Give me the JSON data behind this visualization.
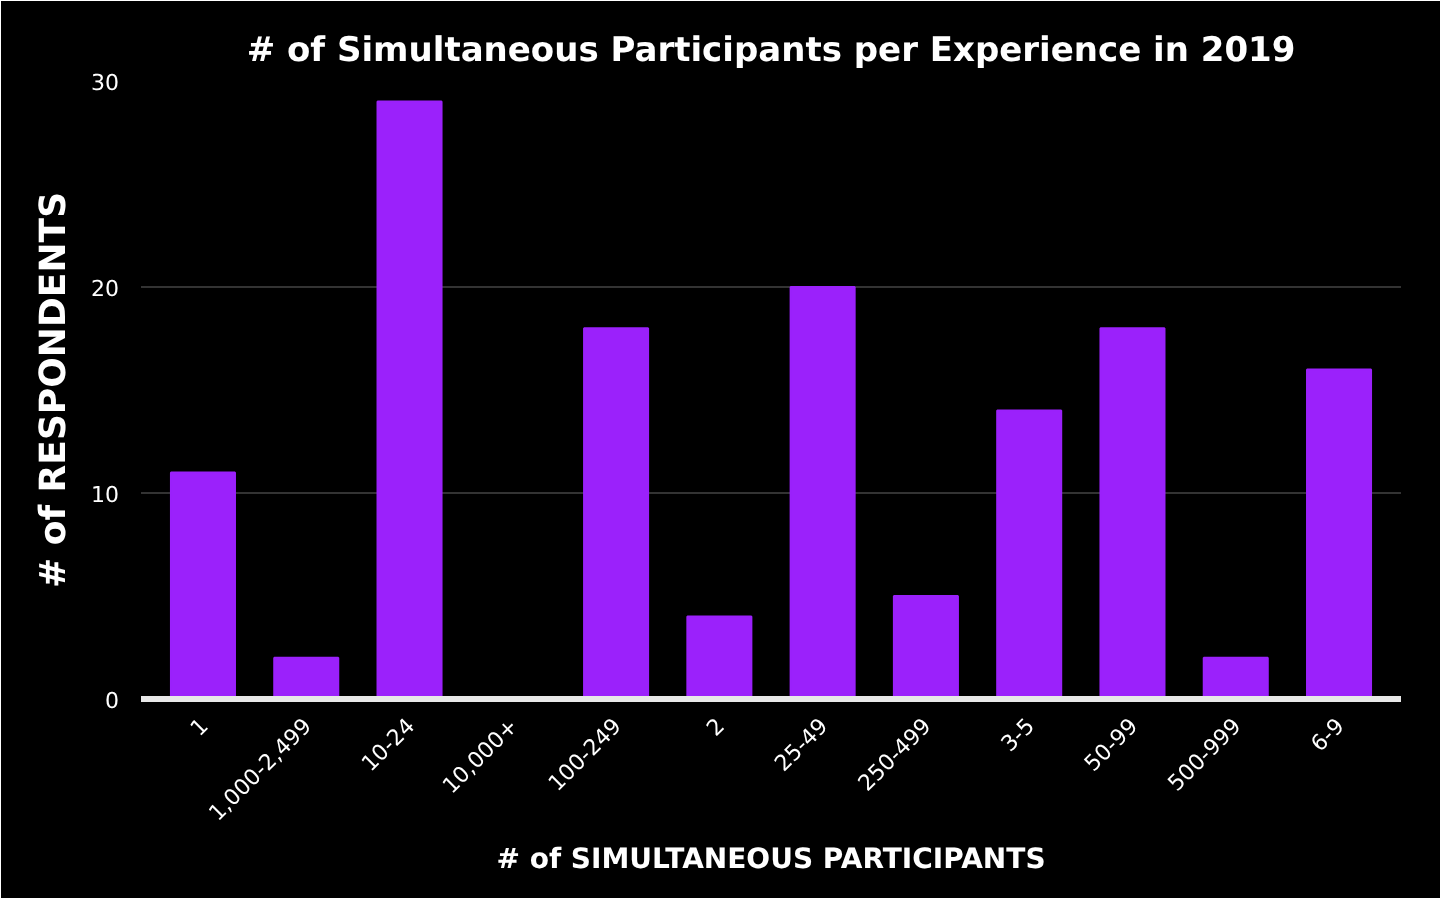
{
  "chart_data": {
    "type": "bar",
    "title": "# of Simultaneous Participants per Experience in 2019",
    "xlabel": "# of SIMULTANEOUS PARTICIPANTS",
    "ylabel": "# of RESPONDENTS",
    "categories": [
      "1",
      "1,000-2,499",
      "10-24",
      "10,000+",
      "100-249",
      "2",
      "25-49",
      "250-499",
      "3-5",
      "50-99",
      "500-999",
      "6-9"
    ],
    "values": [
      11,
      2,
      29,
      0,
      18,
      4,
      20,
      5,
      14,
      18,
      2,
      16
    ],
    "color": "#9b21fb",
    "ylim": [
      0,
      30
    ],
    "yticks": [
      0,
      10,
      20,
      30
    ],
    "grid": "y"
  }
}
